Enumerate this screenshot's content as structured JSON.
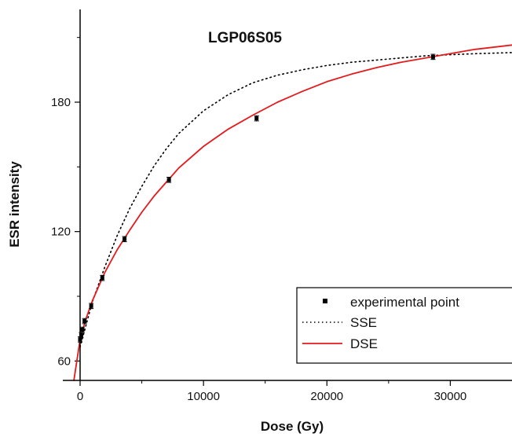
{
  "chart_data": {
    "type": "scatter",
    "title": "LGP06S05",
    "xlabel": "Dose (Gy)",
    "ylabel": "ESR intensity",
    "xlim": [
      -1400,
      35000
    ],
    "ylim": [
      51,
      223
    ],
    "xticks": [
      0,
      10000,
      20000,
      30000
    ],
    "xtick_labels": [
      "0",
      "10000",
      "20000",
      "30000"
    ],
    "yticks": [
      60,
      120,
      180
    ],
    "ytick_labels": [
      "60",
      "120",
      "180"
    ],
    "grid": false,
    "legend_position": "bottom-right",
    "series": [
      {
        "name": "experimental point",
        "kind": "points",
        "color": "#000000",
        "x": [
          0,
          90,
          180,
          360,
          900,
          1800,
          3600,
          7200,
          14300,
          28600
        ],
        "y": [
          70,
          72,
          74.5,
          78.5,
          85.5,
          98.5,
          116.5,
          144,
          172.5,
          201
        ],
        "yerr": [
          1.2,
          1.2,
          1.2,
          1.2,
          1.2,
          1.2,
          1.2,
          1.2,
          1.2,
          1.2
        ]
      },
      {
        "name": "SSE",
        "kind": "fit-dotted",
        "color": "#000000",
        "x": [
          0,
          1000,
          2000,
          3000,
          4000,
          5000,
          6000,
          7000,
          8000,
          10000,
          12000,
          14000,
          16000,
          18000,
          20000,
          22000,
          24000,
          26000,
          28000,
          30000,
          32000,
          35000
        ],
        "y": [
          66.5,
          87.5,
          103.5,
          118.0,
          130.5,
          141.0,
          150.5,
          158.5,
          165.5,
          176.0,
          183.5,
          189.0,
          192.5,
          195.0,
          197.0,
          198.5,
          199.5,
          200.5,
          201.5,
          202.0,
          202.5,
          203.0
        ]
      },
      {
        "name": "DSE",
        "kind": "fit-line",
        "color": "#e41a1c",
        "x": [
          -500,
          0,
          500,
          1000,
          2000,
          3000,
          4000,
          5000,
          6000,
          7000,
          8000,
          10000,
          12000,
          14000,
          16000,
          18000,
          20000,
          22000,
          24000,
          26000,
          28000,
          30000,
          32000,
          35000
        ],
        "y": [
          51.0,
          70.0,
          80.0,
          88.0,
          101.0,
          111.5,
          120.5,
          129.0,
          136.5,
          143.0,
          149.5,
          159.5,
          167.5,
          174.0,
          180.0,
          185.0,
          189.5,
          193.0,
          196.0,
          198.5,
          200.5,
          202.5,
          204.5,
          206.5
        ]
      }
    ]
  }
}
